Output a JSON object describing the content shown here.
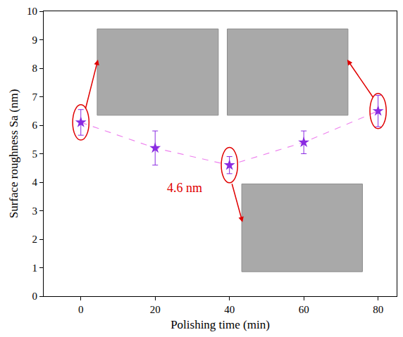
{
  "chart_data": {
    "type": "scatter",
    "x_label": "Polishing time (min)",
    "y_label": "Surface roughness Sa (nm)",
    "x": [
      0,
      20,
      40,
      60,
      80
    ],
    "values": [
      6.1,
      5.2,
      4.6,
      5.4,
      6.5
    ],
    "errors": [
      0.45,
      0.6,
      0.3,
      0.4,
      0.55
    ],
    "color": "#8a2be2",
    "marker": "star",
    "line_style": "dash",
    "xlim": [
      -10,
      85
    ],
    "xticks": [
      0,
      20,
      40,
      60,
      80
    ],
    "ylim": [
      0,
      10
    ],
    "yticks": [
      0,
      1,
      2,
      3,
      4,
      5,
      6,
      7,
      8,
      9,
      10
    ],
    "grid": false,
    "annotations": [
      {
        "text": "4.6 nm",
        "x": 40,
        "y": 4.6
      }
    ]
  }
}
